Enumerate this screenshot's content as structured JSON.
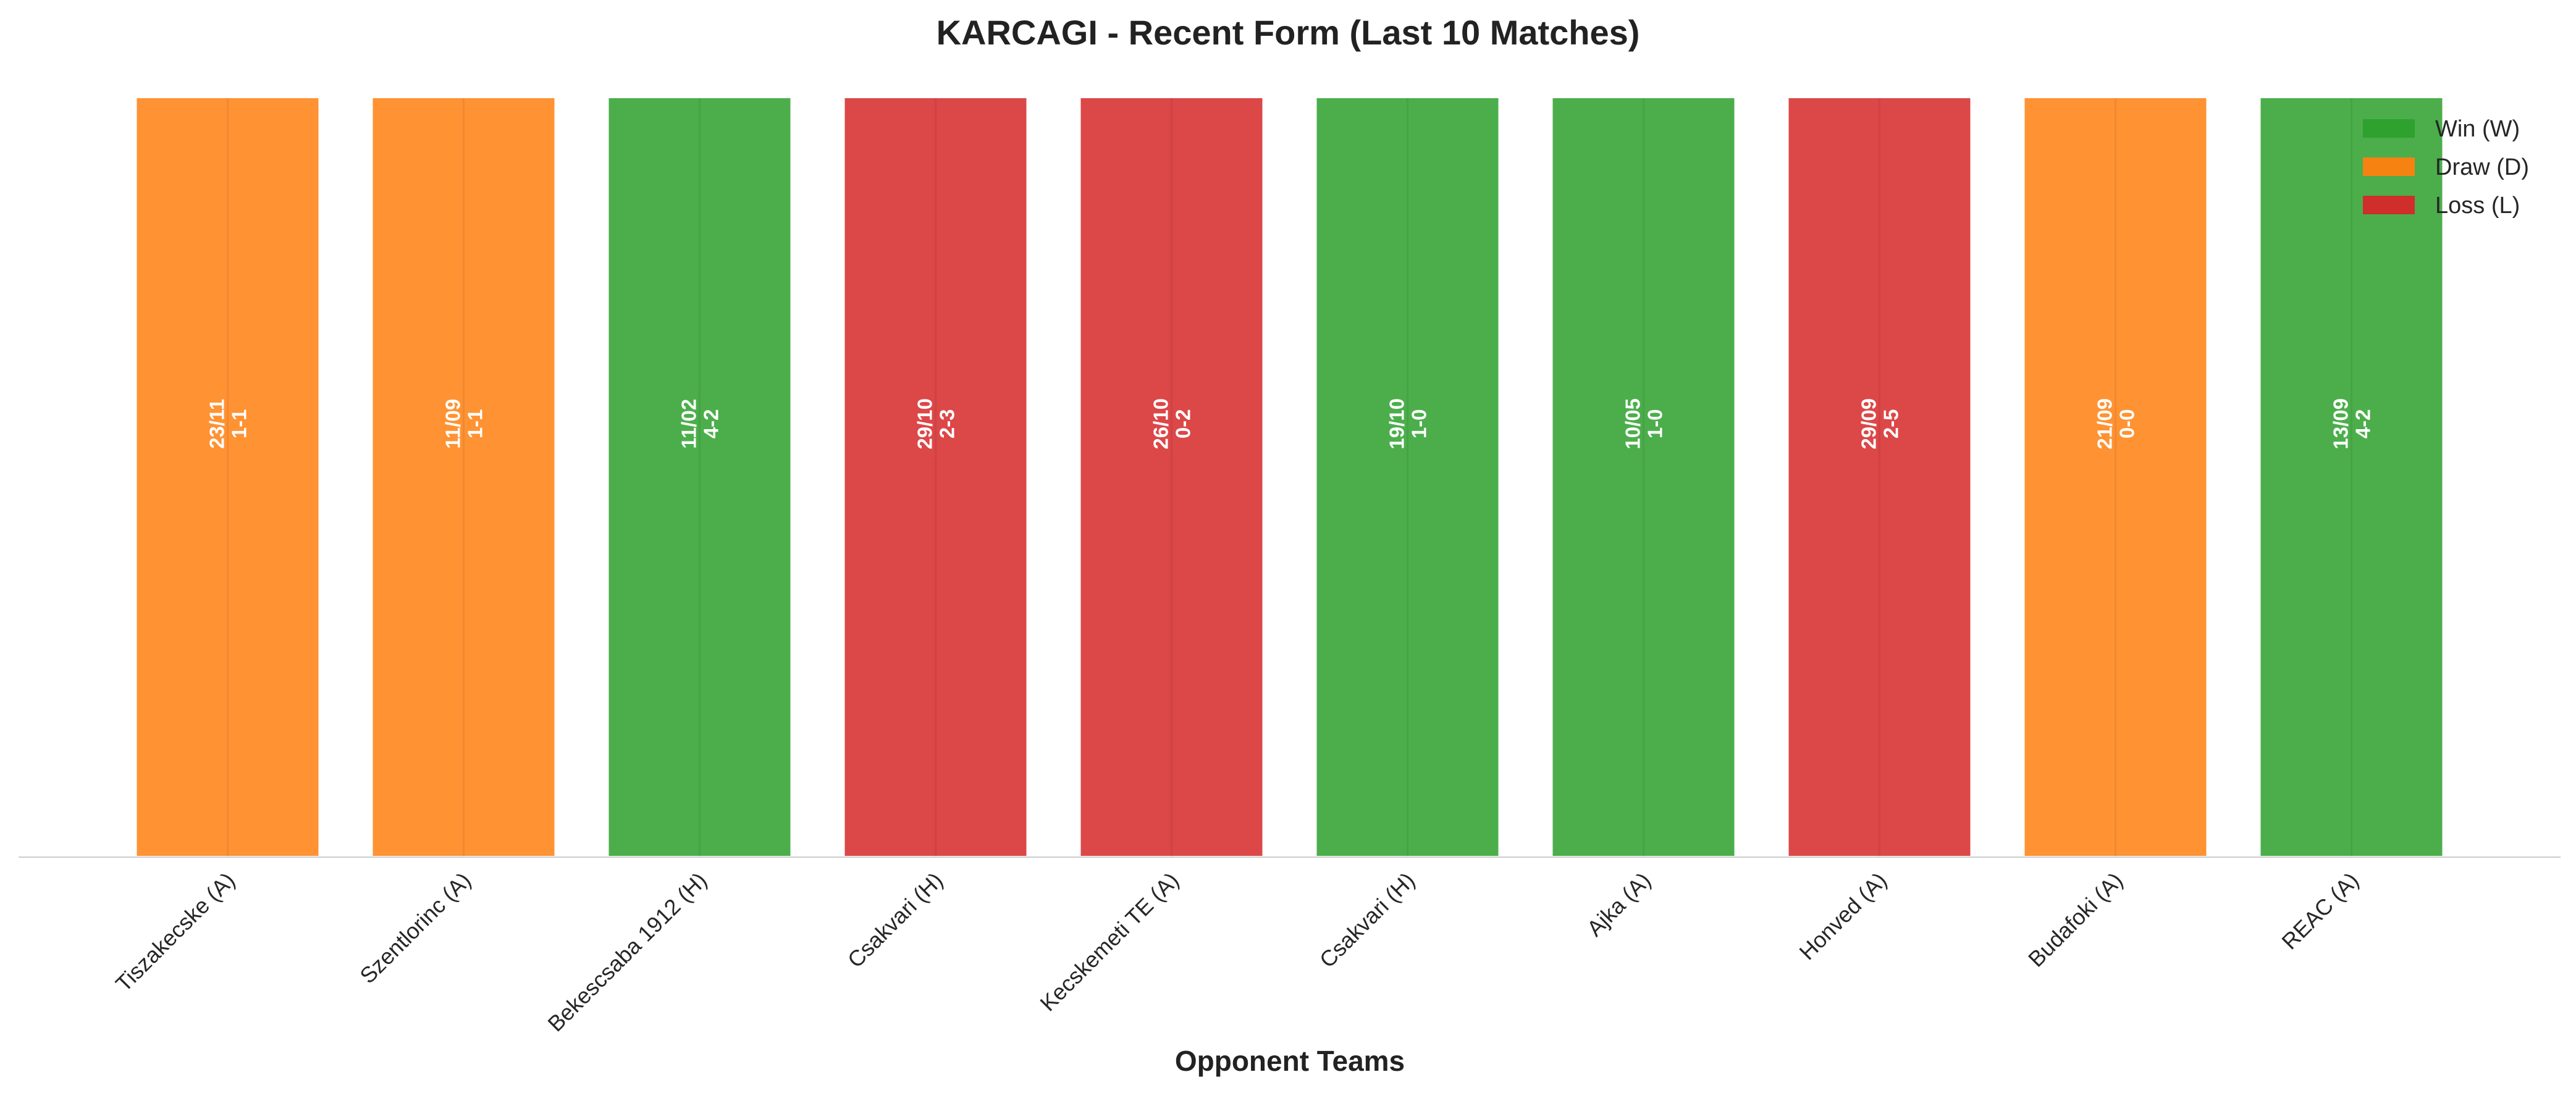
{
  "chart_data": {
    "type": "bar",
    "title": "KARCAGI - Recent Form (Last 10 Matches)",
    "xlabel": "Opponent Teams",
    "ylabel": "",
    "categories": [
      "Tiszakecske (A)",
      "Szentlorinc (A)",
      "Bekescsaba 1912 (H)",
      "Csakvari (H)",
      "Kecskemeti TE (A)",
      "Csakvari (H)",
      "Ajka (A)",
      "Honved (A)",
      "Budafoki (A)",
      "REAC (A)"
    ],
    "values": [
      1,
      1,
      1,
      1,
      1,
      1,
      1,
      1,
      1,
      1
    ],
    "results": [
      "D",
      "D",
      "W",
      "L",
      "L",
      "W",
      "W",
      "L",
      "D",
      "W"
    ],
    "dates": [
      "23/11",
      "11/09",
      "11/02",
      "29/10",
      "26/10",
      "19/10",
      "10/05",
      "29/09",
      "21/09",
      "13/09"
    ],
    "scores": [
      "1-1",
      "1-1",
      "4-2",
      "2-3",
      "0-2",
      "1-0",
      "1-0",
      "2-5",
      "0-0",
      "4-2"
    ],
    "ylim": [
      0,
      1
    ],
    "grid": false,
    "legend": {
      "placement": "top-right",
      "entries": [
        {
          "key": "W",
          "label": "Win (W)",
          "color": "#2ca02c"
        },
        {
          "key": "D",
          "label": "Draw (D)",
          "color": "#ff7f0e"
        },
        {
          "key": "L",
          "label": "Loss (L)",
          "color": "#d62728"
        }
      ]
    }
  }
}
